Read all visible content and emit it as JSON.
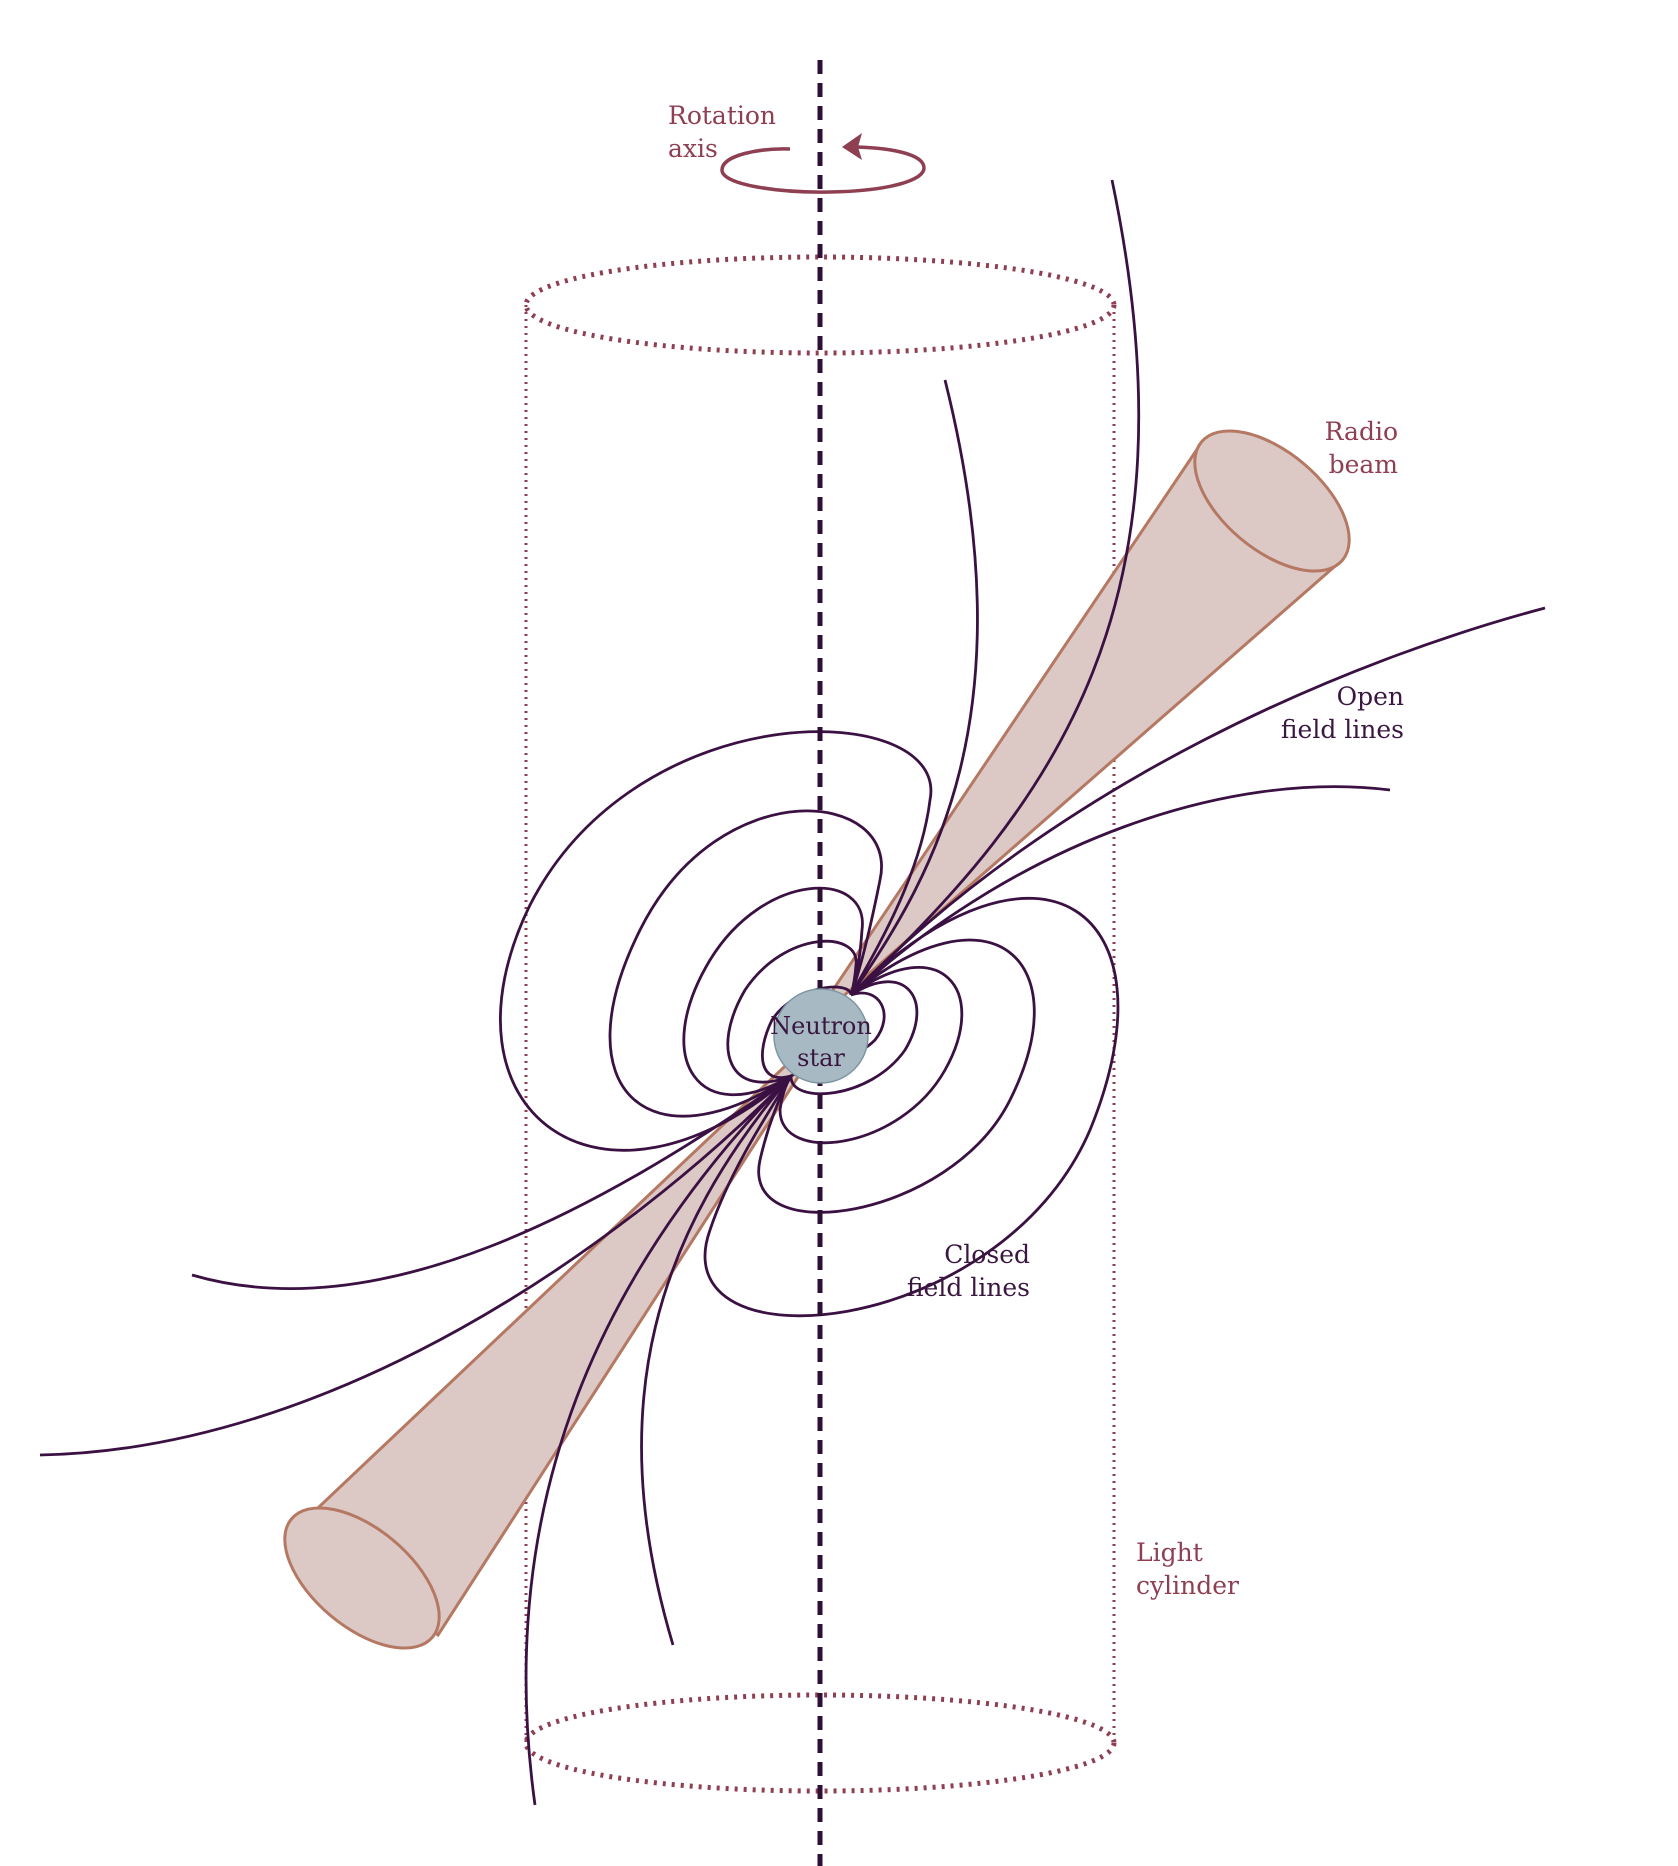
{
  "labels": {
    "rotation_axis": [
      "Rotation",
      "axis"
    ],
    "radio_beam": [
      "Radio",
      "beam"
    ],
    "open_field_lines": [
      "Open",
      "field lines"
    ],
    "closed_field_lines": [
      "Closed",
      "field lines"
    ],
    "light_cylinder": [
      "Light",
      "cylinder"
    ],
    "neutron_star": [
      "Neutron",
      "star"
    ]
  },
  "colors": {
    "accent_red": "#8e3f52",
    "field_line_purple": "#3a1142",
    "beam_fill": "#dcc9c6",
    "beam_edge": "#b57862",
    "star_fill": "#a7bac4"
  }
}
